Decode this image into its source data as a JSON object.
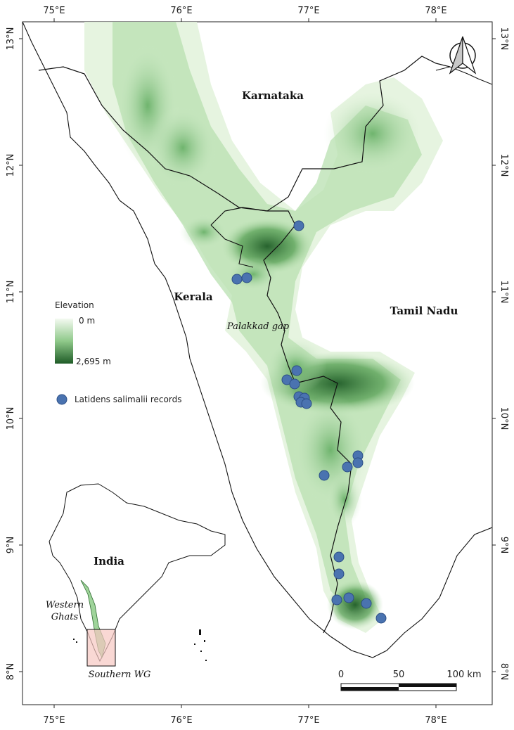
{
  "axes": {
    "top_lon": [
      "75°E",
      "76°E",
      "77°E",
      "78°E"
    ],
    "bottom_lon": [
      "75°E",
      "76°E",
      "77°E",
      "78°E"
    ],
    "left_lat": [
      "13°N",
      "12°N",
      "11°N",
      "10°N",
      "9°N",
      "8°N"
    ],
    "right_lat": [
      "13°N",
      "12°N",
      "11°N",
      "10°N",
      "9°N",
      "8°N"
    ]
  },
  "labels": {
    "karnataka": "Karnataka",
    "kerala": "Kerala",
    "tamil_nadu": "Tamil Nadu",
    "palakkad_gap": "Palakkad gap",
    "india": "India",
    "western_ghats_line1": "Western",
    "western_ghats_line2": "Ghats",
    "southern_wg": "Southern WG"
  },
  "legend": {
    "elevation_title": "Elevation",
    "elevation_min": "0 m",
    "elevation_max": "2,695 m",
    "records_label": "Latidens salimalii records",
    "color_low": "#f4faf1",
    "color_high": "#1f5c27",
    "record_color": "#4a73b0"
  },
  "scalebar": {
    "ticks": [
      "0",
      "50",
      "100 km"
    ]
  },
  "north_arrow": {
    "icon": "north-arrow-icon"
  }
}
